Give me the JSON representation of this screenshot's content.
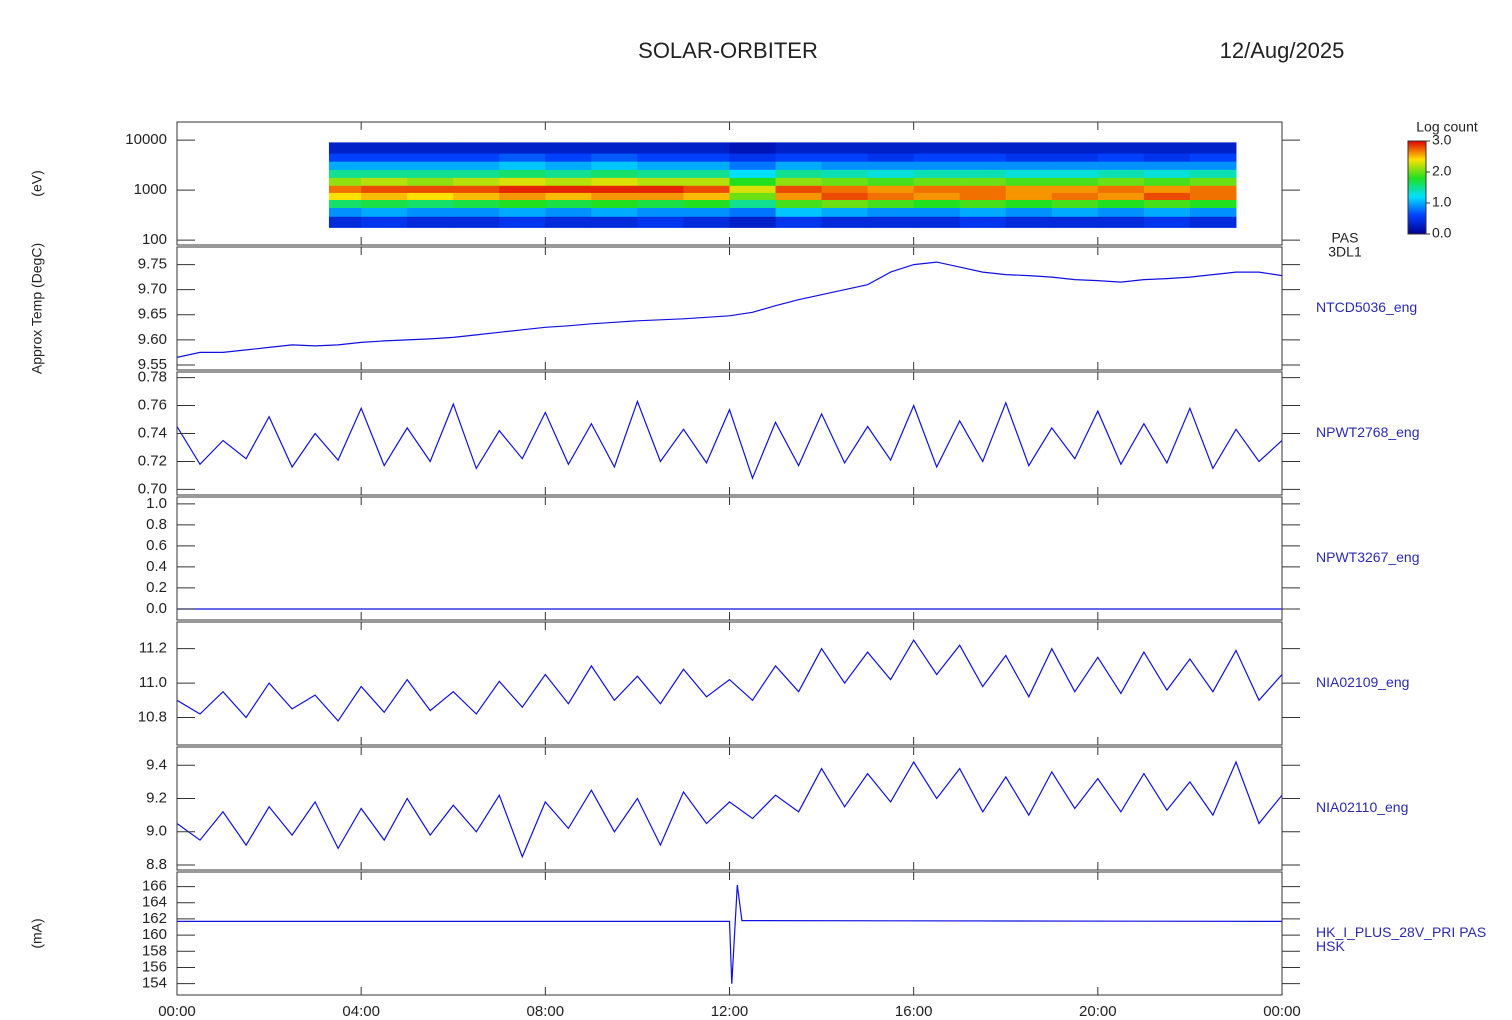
{
  "header": {
    "title": "SOLAR-ORBITER",
    "date": "12/Aug/2025"
  },
  "chart_data": [
    {
      "type": "heatmap",
      "label": [
        "PAS",
        "3DL1"
      ],
      "ylabel": "(eV)",
      "log": true,
      "xlim": [
        0,
        24
      ],
      "ylim": [
        80,
        23000
      ],
      "yticks": [
        100,
        1000,
        10000
      ],
      "x_edges": [
        3.3,
        4,
        5,
        6,
        7,
        8,
        9,
        10,
        11,
        12,
        13,
        14,
        15,
        16,
        17,
        18,
        19,
        20,
        21,
        22,
        23
      ],
      "y_edges": [
        180,
        300,
        450,
        650,
        900,
        1250,
        1800,
        2600,
        3800,
        5500,
        9000
      ],
      "z": [
        [
          0.4,
          0.5,
          0.4,
          0.4,
          0.5,
          0.4,
          0.4,
          0.5,
          0.4,
          0.3,
          0.5,
          0.4,
          0.4,
          0.4,
          0.5,
          0.4,
          0.4,
          0.4,
          0.5,
          0.4
        ],
        [
          0.9,
          1.0,
          0.9,
          0.9,
          1.0,
          0.9,
          1.0,
          0.9,
          0.9,
          0.8,
          1.1,
          1.0,
          0.9,
          0.9,
          1.0,
          0.9,
          1.0,
          0.9,
          1.0,
          0.9
        ],
        [
          1.6,
          1.7,
          1.6,
          1.7,
          1.8,
          1.7,
          1.8,
          1.7,
          1.8,
          1.5,
          1.9,
          2.0,
          1.9,
          1.8,
          1.9,
          1.8,
          1.9,
          1.8,
          1.9,
          1.8
        ],
        [
          2.4,
          2.5,
          2.4,
          2.5,
          2.6,
          2.5,
          2.6,
          2.6,
          2.5,
          2.0,
          2.6,
          2.8,
          2.7,
          2.6,
          2.7,
          2.6,
          2.7,
          2.6,
          2.8,
          2.7
        ],
        [
          2.7,
          2.8,
          2.8,
          2.8,
          2.9,
          2.9,
          2.9,
          2.9,
          2.8,
          2.3,
          2.8,
          2.7,
          2.6,
          2.7,
          2.7,
          2.6,
          2.6,
          2.7,
          2.6,
          2.7
        ],
        [
          2.1,
          2.2,
          2.1,
          2.2,
          2.3,
          2.2,
          2.3,
          2.2,
          2.2,
          1.8,
          2.1,
          2.0,
          1.9,
          2.0,
          2.0,
          1.9,
          1.9,
          2.0,
          1.9,
          2.0
        ],
        [
          1.5,
          1.5,
          1.5,
          1.5,
          1.6,
          1.5,
          1.6,
          1.5,
          1.5,
          1.2,
          1.5,
          1.4,
          1.3,
          1.4,
          1.4,
          1.3,
          1.3,
          1.4,
          1.3,
          1.4
        ],
        [
          1.0,
          1.0,
          1.0,
          1.0,
          1.1,
          1.0,
          1.1,
          1.0,
          1.0,
          0.8,
          1.0,
          0.9,
          0.9,
          0.9,
          0.9,
          0.9,
          0.9,
          0.9,
          0.9,
          0.9
        ],
        [
          0.6,
          0.6,
          0.6,
          0.6,
          0.7,
          0.6,
          0.7,
          0.6,
          0.6,
          0.5,
          0.6,
          0.6,
          0.5,
          0.6,
          0.6,
          0.5,
          0.5,
          0.6,
          0.5,
          0.6
        ],
        [
          0.3,
          0.3,
          0.3,
          0.3,
          0.3,
          0.3,
          0.3,
          0.3,
          0.3,
          0.2,
          0.3,
          0.3,
          0.3,
          0.3,
          0.3,
          0.3,
          0.3,
          0.3,
          0.3,
          0.3
        ]
      ],
      "colorbar_label": "Log count",
      "clim": [
        0,
        3
      ],
      "cticks": [
        {
          "value": 0,
          "label": "0.0"
        },
        {
          "value": 1,
          "label": "1.0"
        },
        {
          "value": 2,
          "label": "2.0"
        },
        {
          "value": 3,
          "label": "3.0"
        }
      ],
      "colors": [
        "#000090",
        "#0040ff",
        "#00e0ff",
        "#20e020",
        "#ffe000",
        "#e00000"
      ]
    },
    {
      "type": "line",
      "label": [
        "NTCD5036_eng"
      ],
      "ylabel": "Approx Temp (DegC)",
      "color": "#1010e0",
      "xlim": [
        0,
        24
      ],
      "ylim": [
        9.54,
        9.785
      ],
      "yticks": [
        9.55,
        {
          "value": 9.6,
          "label": "9.60"
        },
        9.65,
        {
          "value": 9.7,
          "label": "9.70"
        },
        9.75
      ],
      "x": [
        0,
        0.5,
        1,
        1.5,
        2,
        2.5,
        3,
        3.5,
        4,
        4.5,
        5,
        5.5,
        6,
        6.5,
        7,
        7.5,
        8,
        8.5,
        9,
        9.5,
        10,
        10.5,
        11,
        11.5,
        12,
        12.5,
        13,
        13.5,
        14,
        14.5,
        15,
        15.5,
        16,
        16.5,
        17,
        17.5,
        18,
        18.5,
        19,
        19.5,
        20,
        20.5,
        21,
        21.5,
        22,
        22.5,
        23,
        23.5,
        24
      ],
      "values": [
        9.565,
        9.575,
        9.575,
        9.58,
        9.585,
        9.59,
        9.588,
        9.59,
        9.595,
        9.598,
        9.6,
        9.602,
        9.605,
        9.61,
        9.615,
        9.62,
        9.625,
        9.628,
        9.632,
        9.635,
        9.638,
        9.64,
        9.642,
        9.645,
        9.648,
        9.655,
        9.668,
        9.68,
        9.69,
        9.7,
        9.71,
        9.735,
        9.75,
        9.755,
        9.745,
        9.735,
        9.73,
        9.728,
        9.725,
        9.72,
        9.718,
        9.715,
        9.72,
        9.722,
        9.725,
        9.73,
        9.735,
        9.735,
        9.728
      ]
    },
    {
      "type": "line",
      "label": [
        "NPWT2768_eng"
      ],
      "color": "#1010e0",
      "xlim": [
        0,
        24
      ],
      "ylim": [
        0.696,
        0.784
      ],
      "yticks": [
        {
          "value": 0.7,
          "label": "0.70"
        },
        0.72,
        0.74,
        0.76,
        0.78
      ],
      "x": [
        0,
        0.5,
        1,
        1.5,
        2,
        2.5,
        3,
        3.5,
        4,
        4.5,
        5,
        5.5,
        6,
        6.5,
        7,
        7.5,
        8,
        8.5,
        9,
        9.5,
        10,
        10.5,
        11,
        11.5,
        12,
        12.5,
        13,
        13.5,
        14,
        14.5,
        15,
        15.5,
        16,
        16.5,
        17,
        17.5,
        18,
        18.5,
        19,
        19.5,
        20,
        20.5,
        21,
        21.5,
        22,
        22.5,
        23,
        23.5,
        24
      ],
      "values": [
        0.745,
        0.718,
        0.735,
        0.722,
        0.752,
        0.716,
        0.74,
        0.721,
        0.758,
        0.717,
        0.744,
        0.72,
        0.761,
        0.715,
        0.742,
        0.722,
        0.755,
        0.718,
        0.747,
        0.716,
        0.763,
        0.72,
        0.743,
        0.719,
        0.757,
        0.708,
        0.748,
        0.717,
        0.754,
        0.719,
        0.745,
        0.721,
        0.76,
        0.716,
        0.749,
        0.72,
        0.762,
        0.717,
        0.744,
        0.722,
        0.756,
        0.718,
        0.747,
        0.719,
        0.758,
        0.715,
        0.743,
        0.72,
        0.735
      ]
    },
    {
      "type": "line",
      "label": [
        "NPWT3267_eng"
      ],
      "color": "#1010e0",
      "xlim": [
        0,
        24
      ],
      "ylim": [
        -0.105,
        1.065
      ],
      "yticks": [
        {
          "value": 0,
          "label": "0.0"
        },
        0.2,
        0.4,
        0.6,
        0.8,
        {
          "value": 1,
          "label": "1.0"
        }
      ],
      "x": [
        0,
        24
      ],
      "values": [
        0,
        0
      ]
    },
    {
      "type": "line",
      "label": [
        "NIA02109_eng"
      ],
      "color": "#1010e0",
      "xlim": [
        0,
        24
      ],
      "ylim": [
        10.64,
        11.355
      ],
      "yticks": [
        10.8,
        {
          "value": 11,
          "label": "11.0"
        },
        11.2
      ],
      "x": [
        0,
        0.5,
        1,
        1.5,
        2,
        2.5,
        3,
        3.5,
        4,
        4.5,
        5,
        5.5,
        6,
        6.5,
        7,
        7.5,
        8,
        8.5,
        9,
        9.5,
        10,
        10.5,
        11,
        11.5,
        12,
        12.5,
        13,
        13.5,
        14,
        14.5,
        15,
        15.5,
        16,
        16.5,
        17,
        17.5,
        18,
        18.5,
        19,
        19.5,
        20,
        20.5,
        21,
        21.5,
        22,
        22.5,
        23,
        23.5,
        24
      ],
      "values": [
        10.9,
        10.82,
        10.95,
        10.8,
        11.0,
        10.85,
        10.93,
        10.78,
        10.98,
        10.83,
        11.02,
        10.84,
        10.95,
        10.82,
        11.01,
        10.86,
        11.05,
        10.88,
        11.1,
        10.9,
        11.04,
        10.88,
        11.08,
        10.92,
        11.02,
        10.9,
        11.1,
        10.95,
        11.2,
        11.0,
        11.18,
        11.02,
        11.25,
        11.05,
        11.22,
        10.98,
        11.16,
        10.92,
        11.2,
        10.95,
        11.15,
        10.94,
        11.18,
        10.96,
        11.14,
        10.95,
        11.19,
        10.9,
        11.05
      ]
    },
    {
      "type": "line",
      "label": [
        "NIA02110_eng"
      ],
      "color": "#1010e0",
      "xlim": [
        0,
        24
      ],
      "ylim": [
        8.77,
        9.51
      ],
      "yticks": [
        8.8,
        {
          "value": 9,
          "label": "9.0"
        },
        9.2,
        9.4
      ],
      "x": [
        0,
        0.5,
        1,
        1.5,
        2,
        2.5,
        3,
        3.5,
        4,
        4.5,
        5,
        5.5,
        6,
        6.5,
        7,
        7.5,
        8,
        8.5,
        9,
        9.5,
        10,
        10.5,
        11,
        11.5,
        12,
        12.5,
        13,
        13.5,
        14,
        14.5,
        15,
        15.5,
        16,
        16.5,
        17,
        17.5,
        18,
        18.5,
        19,
        19.5,
        20,
        20.5,
        21,
        21.5,
        22,
        22.5,
        23,
        23.5,
        24
      ],
      "values": [
        9.05,
        8.95,
        9.12,
        8.92,
        9.15,
        8.98,
        9.18,
        8.9,
        9.14,
        8.95,
        9.2,
        8.98,
        9.16,
        9.0,
        9.22,
        8.85,
        9.18,
        9.02,
        9.25,
        9.0,
        9.2,
        8.92,
        9.24,
        9.05,
        9.18,
        9.08,
        9.22,
        9.12,
        9.38,
        9.15,
        9.35,
        9.18,
        9.42,
        9.2,
        9.38,
        9.12,
        9.33,
        9.1,
        9.36,
        9.14,
        9.32,
        9.12,
        9.35,
        9.13,
        9.3,
        9.1,
        9.42,
        9.05,
        9.22
      ]
    },
    {
      "type": "line",
      "label": [
        "HK_I_PLUS_28V_PRI PAS",
        "HSK"
      ],
      "ylabel": "(mA)",
      "color": "#1010e0",
      "xlim": [
        0,
        24
      ],
      "ylim": [
        152.6,
        167.8
      ],
      "yticks": [
        154,
        156,
        158,
        160,
        162,
        164,
        166
      ],
      "x": [
        0,
        12.0,
        12.05,
        12.17,
        12.27,
        24
      ],
      "values": [
        161.7,
        161.7,
        154.0,
        166.2,
        161.8,
        161.7
      ],
      "xticks": [
        {
          "value": 0,
          "label": "00:00"
        },
        {
          "value": 4,
          "label": "04:00"
        },
        {
          "value": 8,
          "label": "08:00"
        },
        {
          "value": 12,
          "label": "12:00"
        },
        {
          "value": 16,
          "label": "16:00"
        },
        {
          "value": 20,
          "label": "20:00"
        },
        {
          "value": 24,
          "label": "00:00"
        }
      ]
    }
  ]
}
